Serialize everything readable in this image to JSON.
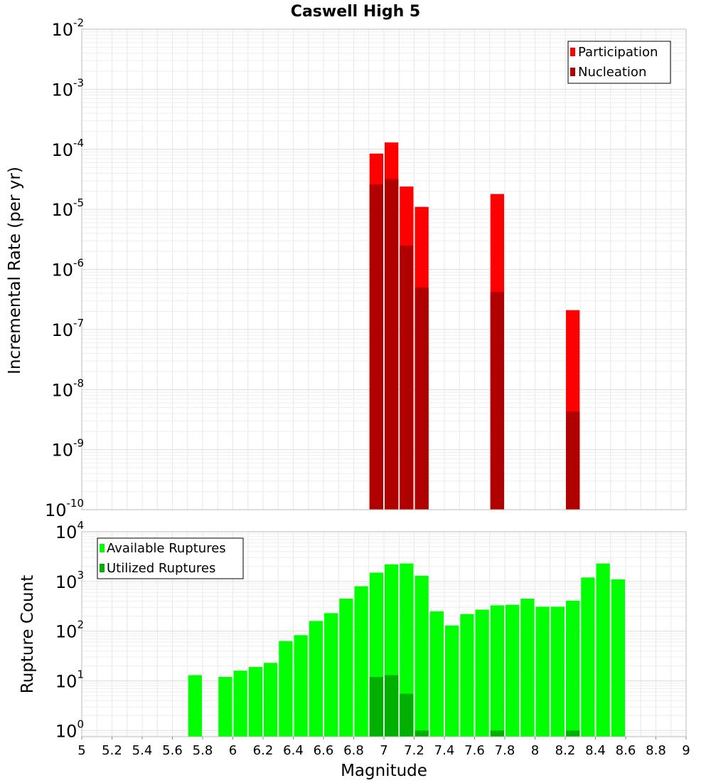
{
  "chart_data": [
    {
      "type": "bar",
      "title": "Caswell High 5",
      "xlabel": "",
      "ylabel": "Incremental Rate (per yr)",
      "yscale": "log",
      "ylim": [
        1e-10,
        0.01
      ],
      "xlim": [
        5,
        9
      ],
      "bar_width": 0.1,
      "legend_position": "top-right",
      "series": [
        {
          "name": "Participation",
          "color": "#ff0000",
          "x": [
            6.95,
            7.05,
            7.15,
            7.25,
            7.75,
            8.25
          ],
          "values": [
            8.5e-05,
            0.00013,
            2.4e-05,
            1.1e-05,
            1.8e-05,
            2.1e-07
          ]
        },
        {
          "name": "Nucleation",
          "color": "#b00000",
          "x": [
            6.95,
            7.05,
            7.15,
            7.25,
            7.75,
            8.25
          ],
          "values": [
            2.6e-05,
            3.2e-05,
            2.5e-06,
            5e-07,
            4.2e-07,
            4.3e-09
          ]
        }
      ]
    },
    {
      "type": "bar",
      "title": "",
      "xlabel": "Magnitude",
      "ylabel": "Rupture Count",
      "yscale": "log",
      "ylim": [
        0.75,
        10000
      ],
      "xlim": [
        5,
        9
      ],
      "bar_width": 0.1,
      "legend_position": "top-left",
      "series": [
        {
          "name": "Available Ruptures",
          "color": "#00ff00",
          "x": [
            5.75,
            5.95,
            6.05,
            6.15,
            6.25,
            6.35,
            6.45,
            6.55,
            6.65,
            6.75,
            6.85,
            6.95,
            7.05,
            7.15,
            7.25,
            7.35,
            7.45,
            7.55,
            7.65,
            7.75,
            7.85,
            7.95,
            8.05,
            8.15,
            8.25,
            8.35,
            8.45,
            8.55
          ],
          "values": [
            13,
            12,
            16,
            19,
            23,
            63,
            83,
            160,
            230,
            450,
            800,
            1500,
            2200,
            2300,
            1300,
            250,
            130,
            220,
            270,
            330,
            340,
            450,
            310,
            310,
            410,
            1200,
            2300,
            1100
          ]
        },
        {
          "name": "Utilized Ruptures",
          "color": "#00b000",
          "x": [
            6.95,
            7.05,
            7.15,
            7.25,
            7.75,
            8.25
          ],
          "values": [
            12,
            13,
            5.5,
            1,
            1,
            1
          ]
        }
      ]
    }
  ],
  "axes": {
    "x_ticks": [
      "5",
      "5.2",
      "5.4",
      "5.6",
      "5.8",
      "6",
      "6.2",
      "6.4",
      "6.6",
      "6.8",
      "7",
      "7.2",
      "7.4",
      "7.6",
      "7.8",
      "8",
      "8.2",
      "8.4",
      "8.6",
      "8.8",
      "9"
    ],
    "top_y_ticks": [
      {
        "base": "10",
        "exp": "-2"
      },
      {
        "base": "10",
        "exp": "-3"
      },
      {
        "base": "10",
        "exp": "-4"
      },
      {
        "base": "10",
        "exp": "-5"
      },
      {
        "base": "10",
        "exp": "-6"
      },
      {
        "base": "10",
        "exp": "-7"
      },
      {
        "base": "10",
        "exp": "-8"
      },
      {
        "base": "10",
        "exp": "-9"
      },
      {
        "base": "10",
        "exp": "-10"
      }
    ],
    "bottom_y_ticks": [
      {
        "base": "10",
        "exp": "4"
      },
      {
        "base": "10",
        "exp": "3"
      },
      {
        "base": "10",
        "exp": "2"
      },
      {
        "base": "10",
        "exp": "1"
      },
      {
        "base": "10",
        "exp": "0"
      }
    ]
  }
}
